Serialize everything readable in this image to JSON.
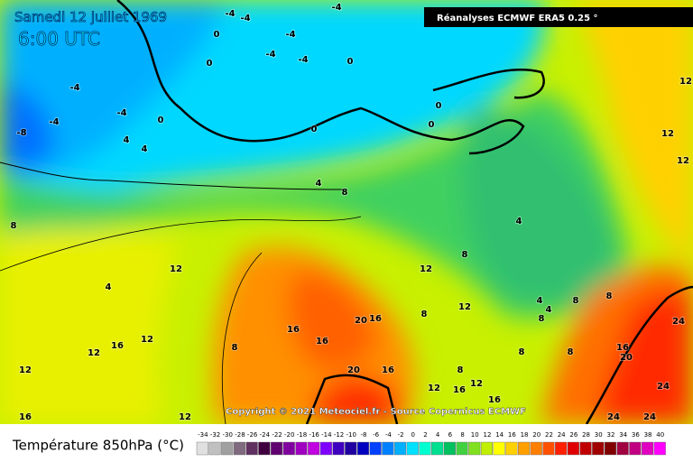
{
  "header": {
    "title": "Samedi 12 juillet 1969",
    "time": "6:00 UTC",
    "source_box": "Réanalyses ECMWF ERA5 0.25 °"
  },
  "copyright": "Copyright © 2021 Meteociel.fr - Source Copernicus ECMWF",
  "legend": {
    "title": "Température 850hPa (°C)",
    "labels": [
      -34,
      -32,
      -30,
      -28,
      -26,
      -24,
      -22,
      -20,
      -18,
      -16,
      -14,
      -12,
      -10,
      -8,
      -6,
      -4,
      -2,
      0,
      2,
      4,
      6,
      8,
      10,
      12,
      14,
      16,
      18,
      20,
      22,
      24,
      26,
      28,
      30,
      32,
      34,
      36,
      38,
      40
    ],
    "colors": [
      "#e0e0e0",
      "#c0c0c0",
      "#a0a0a0",
      "#806a80",
      "#603060",
      "#400040",
      "#600070",
      "#8000a0",
      "#a000c0",
      "#c000e0",
      "#8000ff",
      "#4000c0",
      "#2000a0",
      "#0000c0",
      "#0040ff",
      "#0080ff",
      "#00b0ff",
      "#00e0ff",
      "#00ffd0",
      "#00e090",
      "#00c060",
      "#40d040",
      "#80e020",
      "#c0f000",
      "#ffff00",
      "#ffd000",
      "#ffa000",
      "#ff8000",
      "#ff5000",
      "#ff2000",
      "#e00000",
      "#c00000",
      "#a00000",
      "#800000",
      "#a00040",
      "#c00080",
      "#e000c0",
      "#ff00ff"
    ]
  },
  "contour_labels": [
    -4,
    -4,
    -4,
    -4,
    -4,
    -4,
    -4,
    -4,
    -4,
    -8,
    4,
    4,
    4,
    8,
    0,
    0,
    0,
    0,
    0,
    0,
    0,
    8,
    12,
    4,
    12,
    8,
    4,
    20,
    16,
    16,
    16,
    8,
    16,
    12,
    12,
    12,
    20,
    16,
    12,
    8,
    12,
    16,
    16,
    8,
    8,
    16,
    20,
    24,
    24,
    24,
    24,
    16,
    12,
    8,
    12,
    4,
    4,
    8,
    8,
    12,
    12,
    12,
    8
  ]
}
